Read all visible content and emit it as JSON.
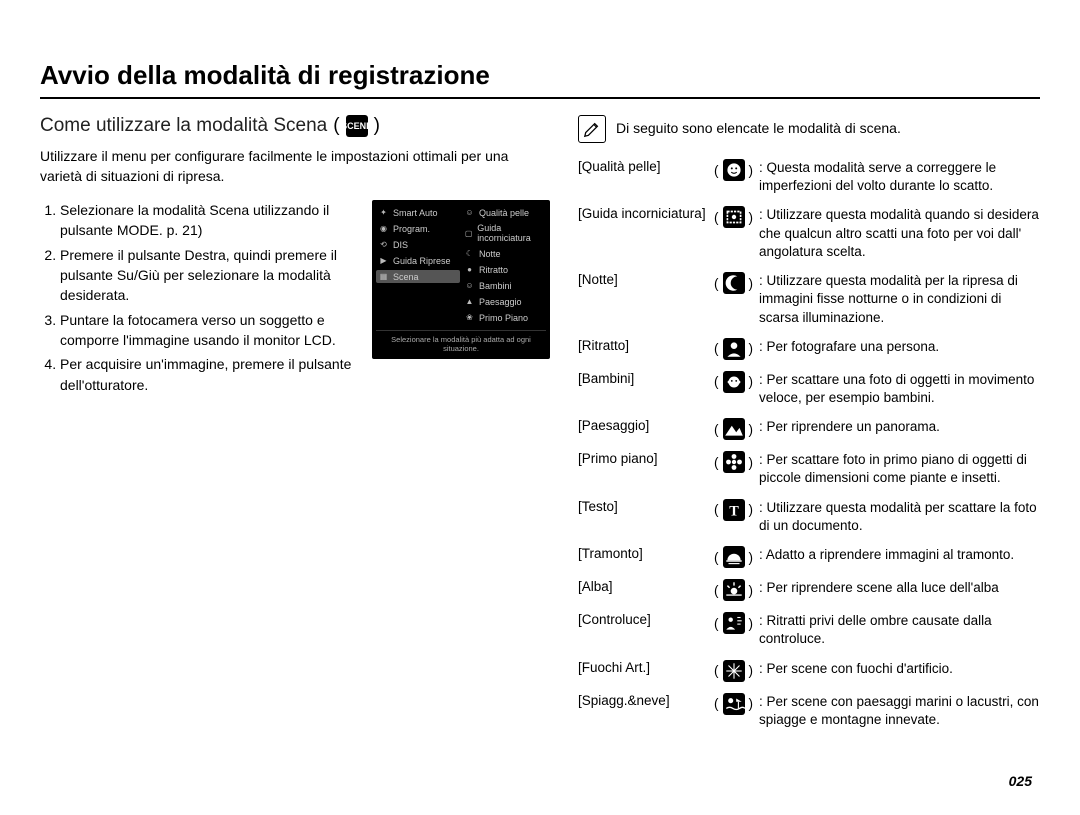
{
  "page": {
    "title": "Avvio della modalità di registrazione",
    "number": "025"
  },
  "left": {
    "subtitle": "Come utilizzare la modalità Scena",
    "subtitle_icon_label": "SCENE",
    "intro": "Utilizzare il menu per configurare facilmente le impostazioni ottimali per una varietà di situazioni di ripresa.",
    "steps": [
      "Selezionare la modalità Scena utilizzando il pulsante MODE. p. 21)",
      "Premere il pulsante Destra, quindi premere il pulsante Su/Giù per selezionare la modalità desiderata.",
      "Puntare la fotocamera verso un soggetto e comporre l'immagine usando il monitor LCD.",
      "Per acquisire un'immagine, premere il pulsante dell'otturatore."
    ],
    "lcd": {
      "left_items": [
        {
          "icon": "✦",
          "label": "Smart Auto"
        },
        {
          "icon": "◉",
          "label": "Program."
        },
        {
          "icon": "⟲",
          "label": "DIS"
        },
        {
          "icon": "▶",
          "label": "Guida Riprese"
        },
        {
          "icon": "▦",
          "label": "Scena",
          "selected": true
        }
      ],
      "right_items": [
        {
          "icon": "☺",
          "label": "Qualità pelle"
        },
        {
          "icon": "▢",
          "label": "Guida incorniciatura"
        },
        {
          "icon": "☾",
          "label": "Notte"
        },
        {
          "icon": "●",
          "label": "Ritratto"
        },
        {
          "icon": "☺",
          "label": "Bambini"
        },
        {
          "icon": "▲",
          "label": "Paesaggio"
        },
        {
          "icon": "❀",
          "label": "Primo Piano"
        }
      ],
      "footer": "Selezionare la modalità più adatta ad ogni situazione."
    }
  },
  "right": {
    "note_icon": "✎",
    "note_text": "Di seguito sono elencate le modalità di scena.",
    "scenes": [
      {
        "label": "[Qualità pelle]",
        "icon_svg": "face",
        "desc": ": Questa modalità serve a correggere le imperfezioni del volto durante lo scatto."
      },
      {
        "label": "[Guida incorniciatura]",
        "icon_svg": "frame",
        "desc": ": Utilizzare questa modalità quando si desidera che qualcun altro scatti una foto per voi dall' angolatura scelta."
      },
      {
        "label": "[Notte]",
        "icon_svg": "moon",
        "desc": ": Utilizzare questa modalità per la ripresa di immagini fisse notturne o in condizioni di scarsa illuminazione."
      },
      {
        "label": "[Ritratto]",
        "icon_svg": "portrait",
        "desc": ": Per fotografare una persona."
      },
      {
        "label": "[Bambini]",
        "icon_svg": "children",
        "desc": ": Per scattare una foto di oggetti in movimento veloce, per esempio bambini."
      },
      {
        "label": "[Paesaggio]",
        "icon_svg": "landscape",
        "desc": ": Per riprendere un panorama."
      },
      {
        "label": "[Primo piano]",
        "icon_svg": "flower",
        "desc": ": Per scattare foto in primo piano di oggetti di piccole dimensioni come piante e insetti."
      },
      {
        "label": "[Testo]",
        "icon_svg": "text",
        "desc": ": Utilizzare questa modalità per scattare la foto di un documento."
      },
      {
        "label": "[Tramonto]",
        "icon_svg": "sunset",
        "desc": ": Adatto a riprendere immagini al tramonto."
      },
      {
        "label": "[Alba]",
        "icon_svg": "dawn",
        "desc": ": Per riprendere scene alla luce dell'alba"
      },
      {
        "label": "[Controluce]",
        "icon_svg": "backlight",
        "desc": ": Ritratti privi delle ombre causate dalla controluce."
      },
      {
        "label": "[Fuochi Art.]",
        "icon_svg": "fireworks",
        "desc": ": Per scene con fuochi d'artificio."
      },
      {
        "label": "[Spiagg.&neve]",
        "icon_svg": "beach",
        "desc": ": Per scene con paesaggi marini o lacustri, con spiagge e montagne innevate."
      }
    ]
  },
  "icons": {
    "face": "<svg viewBox='0 0 20 20'><circle cx='10' cy='10' r='6' fill='white'/><circle cx='8' cy='8.5' r='0.9' fill='black'/><circle cx='12' cy='8.5' r='0.9' fill='black'/><path d='M7.5 12 Q10 14 12.5 12' stroke='black' fill='none' stroke-width='1'/></svg>",
    "frame": "<svg viewBox='0 0 20 20'><rect x='4' y='5' width='12' height='10' fill='none' stroke='white' stroke-width='1.5' stroke-dasharray='2 1'/><circle cx='10' cy='10' r='2' fill='white'/></svg>",
    "moon": "<svg viewBox='0 0 20 20'><path d='M13 4 A7 7 0 1 0 13 16 A5 5 0 1 1 13 4' fill='white'/></svg>",
    "portrait": "<svg viewBox='0 0 20 20'><circle cx='10' cy='7' r='3' fill='white'/><path d='M4 17 Q10 11 16 17' fill='white'/></svg>",
    "children": "<svg viewBox='0 0 20 20'><circle cx='10' cy='10' r='5' fill='white'/><circle cx='8' cy='9' r='0.8' fill='black'/><circle cx='12' cy='9' r='0.8' fill='black'/><circle cx='5.5' cy='10' r='1.3' fill='white'/><circle cx='14.5' cy='10' r='1.3' fill='white'/></svg>",
    "landscape": "<svg viewBox='0 0 20 20'><path d='M2 16 L8 7 L12 13 L15 9 L18 16 Z' fill='white'/></svg>",
    "flower": "<svg viewBox='0 0 20 20'><circle cx='10' cy='10' r='2' fill='white'/><circle cx='10' cy='5' r='2.2' fill='white'/><circle cx='10' cy='15' r='2.2' fill='white'/><circle cx='5' cy='10' r='2.2' fill='white'/><circle cx='15' cy='10' r='2.2' fill='white'/></svg>",
    "text": "<svg viewBox='0 0 20 20'><text x='10' y='15' text-anchor='middle' font-size='13' font-family='serif' fill='white' font-weight='bold'>T</text></svg>",
    "sunset": "<svg viewBox='0 0 20 20'><path d='M4 13 A6 6 0 0 1 16 13 Z' fill='white'/><rect x='3' y='13' width='14' height='1.3' fill='white'/><rect x='5' y='15.5' width='10' height='1' fill='white'/></svg>",
    "dawn": "<svg viewBox='0 0 20 20'><circle cx='10' cy='11' r='3' fill='white'/><line x1='10' y1='3' x2='10' y2='6' stroke='white' stroke-width='1.3'/><line x1='4' y1='6' x2='6' y2='8' stroke='white' stroke-width='1.3'/><line x1='16' y1='6' x2='14' y2='8' stroke='white' stroke-width='1.3'/><rect x='3' y='14' width='14' height='1.2' fill='white'/></svg>",
    "backlight": "<svg viewBox='0 0 20 20'><circle cx='7' cy='7' r='2' fill='white'/><path d='M3 16 Q7 11 11 16' fill='white'/><line x1='13' y1='5' x2='16' y2='5' stroke='white'/><line x1='13' y1='8' x2='17' y2='8' stroke='white'/><line x1='13' y1='11' x2='16' y2='11' stroke='white'/></svg>",
    "fireworks": "<svg viewBox='0 0 20 20'><g stroke='white' stroke-width='1'><line x1='10' y1='10' x2='10' y2='3'/><line x1='10' y1='10' x2='10' y2='17'/><line x1='10' y1='10' x2='3' y2='10'/><line x1='10' y1='10' x2='17' y2='10'/><line x1='10' y1='10' x2='5' y2='5'/><line x1='10' y1='10' x2='15' y2='15'/><line x1='10' y1='10' x2='15' y2='5'/><line x1='10' y1='10' x2='5' y2='15'/></g></svg>",
    "beach": "<svg viewBox='0 0 20 20'><circle cx='7' cy='7' r='2.3' fill='white'/><path d='M12 5 L17 8 L12 8 Z' fill='white'/><line x1='14' y1='8' x2='14' y2='14' stroke='white'/><path d='M3 14 Q6 12 9 14 T15 14 T20 14' stroke='white' fill='none' stroke-width='1.2'/></svg>"
  }
}
